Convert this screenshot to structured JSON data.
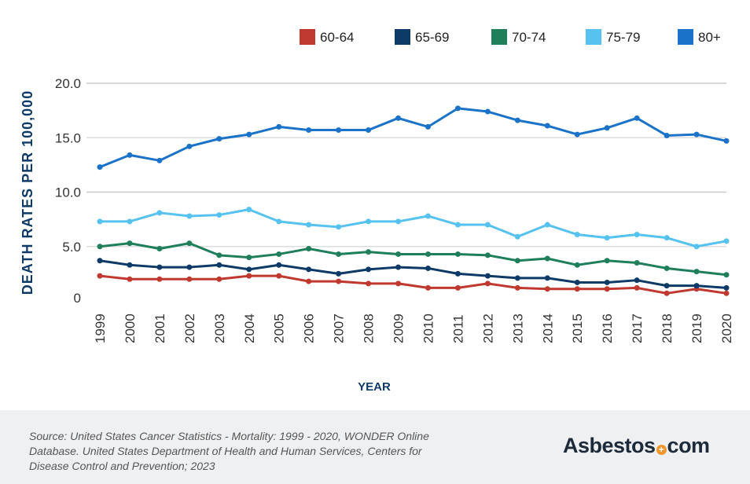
{
  "chart_data": {
    "type": "line",
    "xlabel": "YEAR",
    "ylabel": "DEATH RATES PER 100,000",
    "ylim": [
      0,
      20
    ],
    "yticks": [
      "0",
      "5.0",
      "10.0",
      "15.0",
      "20.0"
    ],
    "grid": true,
    "legend": "top-right",
    "x": [
      "1999",
      "2000",
      "2001",
      "2002",
      "2003",
      "2004",
      "2005",
      "2006",
      "2007",
      "2008",
      "2009",
      "2010",
      "2011",
      "2012",
      "2013",
      "2014",
      "2015",
      "2016",
      "2017",
      "2018",
      "2019",
      "2020"
    ],
    "series": [
      {
        "name": "60-64",
        "color": "#c0392f",
        "values": [
          2.3,
          2.0,
          2.0,
          2.0,
          2.0,
          2.3,
          2.3,
          1.8,
          1.8,
          1.6,
          1.6,
          1.2,
          1.2,
          1.6,
          1.2,
          1.1,
          1.1,
          1.1,
          1.2,
          0.7,
          1.1,
          0.7
        ]
      },
      {
        "name": "65-69",
        "color": "#0d3a66",
        "values": [
          3.7,
          3.3,
          3.1,
          3.1,
          3.3,
          2.9,
          3.3,
          2.9,
          2.5,
          2.9,
          3.1,
          3.0,
          2.5,
          2.3,
          2.1,
          2.1,
          1.7,
          1.7,
          1.9,
          1.4,
          1.4,
          1.2
        ]
      },
      {
        "name": "70-74",
        "color": "#1e7f5a",
        "values": [
          5.0,
          5.3,
          4.8,
          5.3,
          4.2,
          4.0,
          4.3,
          4.8,
          4.3,
          4.5,
          4.3,
          4.3,
          4.3,
          4.2,
          3.7,
          3.9,
          3.3,
          3.7,
          3.5,
          3.0,
          2.7,
          2.4
        ]
      },
      {
        "name": "75-79",
        "color": "#56c2f0",
        "values": [
          7.3,
          7.3,
          8.1,
          7.8,
          7.9,
          8.4,
          7.3,
          7.0,
          6.8,
          7.3,
          7.3,
          7.8,
          7.0,
          7.0,
          5.9,
          7.0,
          6.1,
          5.8,
          6.1,
          5.8,
          5.0,
          5.5
        ]
      },
      {
        "name": "80+",
        "color": "#1a73c8",
        "values": [
          12.3,
          13.4,
          12.9,
          14.2,
          14.9,
          15.3,
          16.0,
          15.7,
          15.7,
          15.7,
          16.8,
          16.0,
          17.7,
          17.4,
          16.6,
          16.1,
          15.3,
          15.9,
          16.8,
          15.2,
          15.3,
          14.7
        ]
      }
    ]
  },
  "footer": {
    "source": "Source: United States Cancer Statistics - Mortality: 1999 - 2020, WONDER Online Database. United States Department of Health and Human Services, Centers for Disease Control and Prevention; 2023",
    "logo_left": "Asbestos",
    "logo_right": "com"
  }
}
